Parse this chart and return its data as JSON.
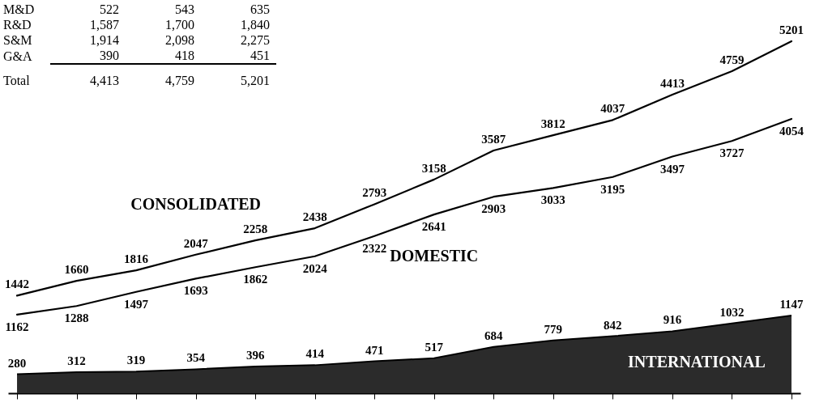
{
  "chart_data": [
    {
      "type": "other",
      "annotations": [
        "M&D 522 543 635",
        "R&D 1,587 1,700 1,840",
        "S&M 1,914 2,098 2,275",
        "G&A 390 418 451",
        "Total 4,413 4,759 5,201"
      ]
    },
    {
      "type": "line",
      "categories": [
        null,
        null,
        null,
        null,
        null,
        null,
        null,
        null,
        null,
        null,
        null,
        null,
        null,
        null
      ],
      "data_labels": true,
      "grid": false,
      "tick_labels": false,
      "series": [
        {
          "name": "CONSOLIDATED",
          "color": "#000000",
          "values": [
            1442,
            1660,
            1816,
            2047,
            2258,
            2438,
            2793,
            3158,
            3587,
            3812,
            4037,
            4413,
            4759,
            5201
          ]
        },
        {
          "name": "DOMESTIC",
          "color": "#000000",
          "values": [
            1162,
            1288,
            1497,
            1693,
            1862,
            2024,
            2322,
            2641,
            2903,
            3033,
            3195,
            3497,
            3727,
            4054
          ]
        },
        {
          "name": "INTERNATIONAL",
          "type": "area",
          "color": "#2b2b2b",
          "values": [
            280,
            312,
            319,
            354,
            396,
            414,
            471,
            517,
            684,
            779,
            842,
            916,
            1032,
            1147
          ]
        }
      ]
    }
  ]
}
